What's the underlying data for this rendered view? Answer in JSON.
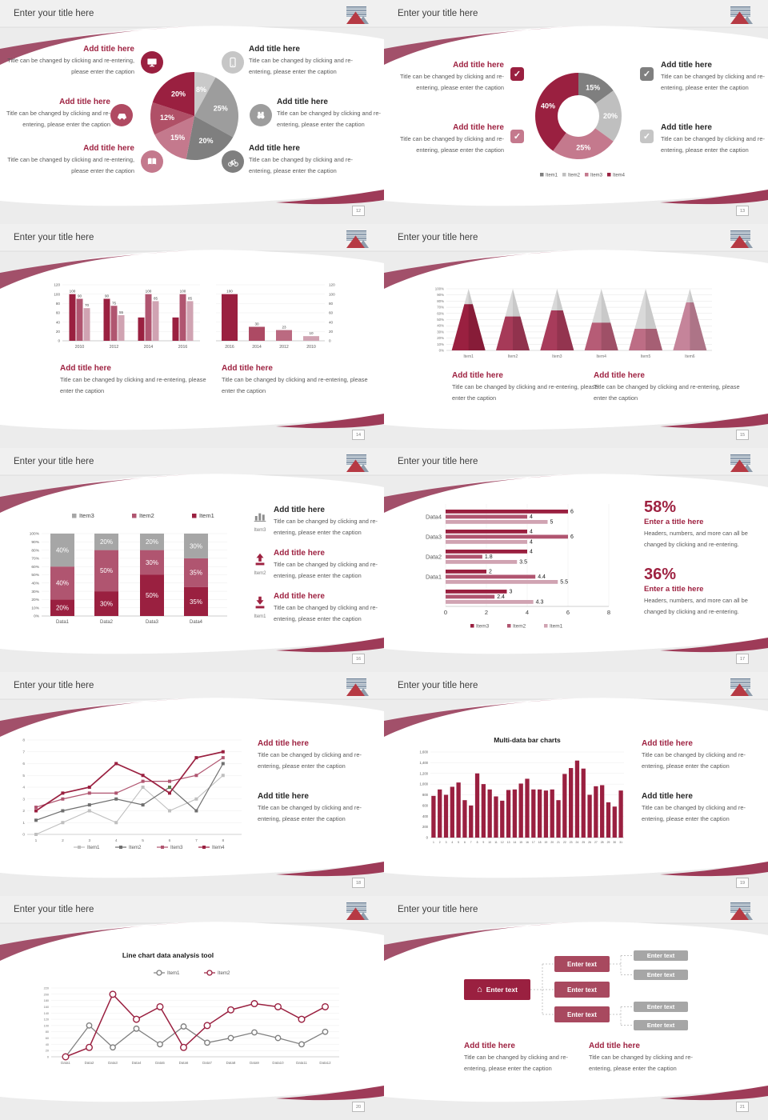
{
  "palette": {
    "accent_dark": "#9a2040",
    "accent_mid": "#b05570",
    "accent_rose": "#c4798d",
    "accent_light": "#d0a3b2",
    "gray_dark": "#7f7f7f",
    "gray_mid": "#9d9d9d",
    "gray_light": "#c6c6c6",
    "heading_red": "#9e2241",
    "heading_dark": "#262626",
    "caption_gray": "#595959",
    "swoosh_top": "#a2506a",
    "swoosh_bottom": "#9e3b58"
  },
  "common": {
    "slide_title": "Enter your title here",
    "add_title": "Add title here",
    "caption": "Title can be changed by clicking and re-entering, please enter the caption",
    "stat_title": "Enter a title here",
    "stat_caption": "Headers, numbers, and more can all be changed by clicking and re-entering.",
    "enter_text": "Enter text"
  },
  "slides": [
    {
      "page": "12",
      "icons": [
        {
          "name": "monitor",
          "color": "#9a2040"
        },
        {
          "name": "phone",
          "color": "#c6c6c6"
        },
        {
          "name": "car",
          "color": "#b04a62"
        },
        {
          "name": "binoculars",
          "color": "#9d9d9d"
        },
        {
          "name": "book",
          "color": "#c4798d"
        },
        {
          "name": "bicycle",
          "color": "#7f7f7f"
        }
      ]
    },
    {
      "page": "13",
      "checkboxes": [
        {
          "color": "#9a2040"
        },
        {
          "color": "#7f7f7f"
        },
        {
          "color": "#c4798d"
        },
        {
          "color": "#c5c5c5"
        }
      ]
    },
    {
      "page": "14"
    },
    {
      "page": "15"
    },
    {
      "page": "16",
      "items": [
        {
          "label": "Item3",
          "icon": "bar-chart"
        },
        {
          "label": "Item2",
          "icon": "upload"
        },
        {
          "label": "Item1",
          "icon": "download"
        }
      ]
    },
    {
      "page": "17",
      "stats": [
        {
          "value": "58%"
        },
        {
          "value": "36%"
        }
      ]
    },
    {
      "page": "18"
    },
    {
      "page": "19"
    },
    {
      "page": "20"
    },
    {
      "page": "21",
      "diagram": {
        "root": "Enter text",
        "mid": [
          "Enter text",
          "Enter text",
          "Enter text"
        ],
        "leaves": [
          "Enter text",
          "Enter text",
          "Enter text",
          "Enter text"
        ],
        "root_color": "#9a2040",
        "mid_color": "#a8495f",
        "leaf_color": "#a6a6a6"
      }
    }
  ],
  "chart_data": [
    {
      "id": "pie6",
      "type": "pie",
      "values": [
        8,
        25,
        20,
        15,
        12,
        20
      ],
      "labels": [
        "8%",
        "25%",
        "20%",
        "15%",
        "12%",
        "20%"
      ],
      "colors": [
        "#c9c9c9",
        "#9d9d9d",
        "#7f7f7f",
        "#c4798d",
        "#b05067",
        "#9a2040"
      ]
    },
    {
      "id": "donut4",
      "type": "pie",
      "values": [
        15,
        20,
        25,
        40
      ],
      "labels": [
        "15%",
        "20%",
        "25%",
        "40%"
      ],
      "colors": [
        "#7f7f7f",
        "#bfbfbf",
        "#c4798d",
        "#9a2040"
      ],
      "legend": [
        "Item1",
        "Item2",
        "Item3",
        "Item4"
      ],
      "legend_colors": [
        "#7f7f7f",
        "#bfbfbf",
        "#c4798d",
        "#9a2040"
      ]
    },
    {
      "id": "bars_grouped",
      "type": "bar",
      "categories": [
        "2010",
        "2012",
        "2014",
        "2016"
      ],
      "ylim": [
        0,
        120
      ],
      "yticks": [
        0,
        20,
        40,
        60,
        80,
        100,
        120
      ],
      "yaxis": "left",
      "series": [
        {
          "name": "series1",
          "color": "#9a2040",
          "values": [
            100,
            90,
            50,
            50
          ],
          "labels": [
            "100",
            "90",
            "",
            ""
          ]
        },
        {
          "name": "series2",
          "color": "#b05570",
          "values": [
            90,
            75,
            100,
            100
          ],
          "labels": [
            "90",
            "75",
            "100",
            "100"
          ]
        },
        {
          "name": "series3",
          "color": "#d0a3b2",
          "values": [
            70,
            55,
            85,
            85
          ],
          "labels": [
            "70",
            "55",
            "85",
            "85"
          ]
        }
      ]
    },
    {
      "id": "bars_single",
      "type": "bar",
      "categories": [
        "2016",
        "2014",
        "2012",
        "2010"
      ],
      "ylim": [
        0,
        120
      ],
      "yticks": [
        0,
        20,
        40,
        60,
        80,
        100,
        120
      ],
      "yaxis": "right",
      "series": [
        {
          "name": "series1",
          "color": [
            "#9a2040",
            "#ad4a64",
            "#bb6a81",
            "#d0a3b2"
          ],
          "values": [
            100,
            30,
            23,
            10
          ],
          "labels": [
            "100",
            "30",
            "23",
            "10"
          ]
        }
      ]
    },
    {
      "id": "cones",
      "type": "cone",
      "categories": [
        "Item1",
        "Item2",
        "Item3",
        "Item4",
        "Item5",
        "Item6"
      ],
      "values": [
        75,
        55,
        65,
        45,
        35,
        78
      ],
      "colors": [
        "#9a2040",
        "#a63a58",
        "#a83c5b",
        "#b65c76",
        "#bd6d85",
        "#c5849a"
      ],
      "rest_color": "#d9d9d9",
      "yticks": [
        "0%",
        "10%",
        "20%",
        "30%",
        "40%",
        "50%",
        "60%",
        "70%",
        "80%",
        "90%",
        "100%"
      ]
    },
    {
      "id": "stacked",
      "type": "stacked",
      "categories": [
        "Data1",
        "Data2",
        "Data3",
        "Data4"
      ],
      "yticks": [
        "0%",
        "10%",
        "20%",
        "30%",
        "40%",
        "50%",
        "60%",
        "70%",
        "80%",
        "90%",
        "100%"
      ],
      "series": [
        {
          "name": "Item1",
          "color": "#9a2040",
          "values": [
            20,
            30,
            50,
            35
          ]
        },
        {
          "name": "Item2",
          "color": "#b05570",
          "values": [
            40,
            50,
            30,
            35
          ]
        },
        {
          "name": "Item3",
          "color": "#a6a6a6",
          "values": [
            40,
            20,
            20,
            30
          ]
        }
      ],
      "legend": [
        {
          "name": "Item3",
          "color": "#a6a6a6"
        },
        {
          "name": "Item2",
          "color": "#b05570"
        },
        {
          "name": "Item1",
          "color": "#9a2040"
        }
      ]
    },
    {
      "id": "hbars",
      "type": "hbar",
      "groups": [
        "Data4",
        "Data3",
        "Data2",
        "Data1",
        ""
      ],
      "xlim": [
        0,
        8
      ],
      "xticks": [
        0,
        2,
        4,
        6,
        8
      ],
      "series": [
        {
          "name": "Item3",
          "color": "#9a2040",
          "values": [
            6,
            4,
            4,
            2,
            3
          ]
        },
        {
          "name": "Item2",
          "color": "#b05570",
          "values": [
            4,
            6,
            1.8,
            4.4,
            2.4
          ]
        },
        {
          "name": "Item1",
          "color": "#d0a3b2",
          "values": [
            5,
            4,
            3.5,
            5.5,
            4.3
          ]
        }
      ],
      "legend": [
        {
          "name": "Item3",
          "color": "#9a2040"
        },
        {
          "name": "Item2",
          "color": "#b05570"
        },
        {
          "name": "Item1",
          "color": "#d0a3b2"
        }
      ]
    },
    {
      "id": "line4",
      "type": "line",
      "x": [
        "1",
        "2",
        "3",
        "4",
        "5",
        "6",
        "7",
        "8"
      ],
      "ylim": [
        0,
        8
      ],
      "yticks": [
        0,
        1,
        2,
        3,
        4,
        5,
        6,
        7,
        8
      ],
      "marker": "square",
      "series": [
        {
          "name": "Item1",
          "color": "#bfbfbf",
          "values": [
            0,
            1,
            2,
            1,
            4,
            2,
            3,
            5
          ]
        },
        {
          "name": "Item2",
          "color": "#6f6f6f",
          "values": [
            1.2,
            2,
            2.5,
            3,
            2.5,
            4,
            2,
            6
          ]
        },
        {
          "name": "Item3",
          "color": "#b05570",
          "values": [
            2.3,
            3,
            3.5,
            3.5,
            4.5,
            4.5,
            5,
            6.5
          ]
        },
        {
          "name": "Item4",
          "color": "#9a2040",
          "values": [
            2,
            3.5,
            4,
            6,
            5,
            3.5,
            6.5,
            7
          ]
        }
      ],
      "special_marker": {
        "series": 1,
        "index": 5,
        "color": "#5f7d4f"
      }
    },
    {
      "id": "bars31",
      "type": "bar",
      "title": "Multi-data bar charts",
      "categories": [
        "1",
        "2",
        "3",
        "4",
        "5",
        "6",
        "7",
        "8",
        "9",
        "10",
        "11",
        "12",
        "13",
        "14",
        "15",
        "16",
        "17",
        "18",
        "19",
        "20",
        "21",
        "22",
        "23",
        "24",
        "25",
        "26",
        "27",
        "28",
        "29",
        "30",
        "31"
      ],
      "ylim": [
        0,
        1600
      ],
      "yticks": [
        "0",
        "200",
        "400",
        "600",
        "800",
        "1,000",
        "1,200",
        "1,400",
        "1,600"
      ],
      "yaxis": "left",
      "series": [
        {
          "name": "data",
          "color": "#9a2040",
          "values": [
            780,
            900,
            800,
            950,
            1030,
            700,
            600,
            1200,
            1000,
            900,
            770,
            690,
            890,
            900,
            1010,
            1100,
            900,
            900,
            880,
            900,
            700,
            1190,
            1300,
            1440,
            1290,
            800,
            960,
            980,
            660,
            580,
            880
          ]
        }
      ]
    },
    {
      "id": "line12",
      "type": "line",
      "title": "Line chart data analysis tool",
      "x": [
        "Data1",
        "Data2",
        "Data3",
        "Data4",
        "Data5",
        "Data6",
        "Data7",
        "Data8",
        "Data9",
        "Data10",
        "Data11",
        "Data12"
      ],
      "ylim": [
        0,
        220
      ],
      "yticks": [
        0,
        20,
        40,
        60,
        80,
        100,
        120,
        140,
        160,
        180,
        200,
        220
      ],
      "marker": "circle",
      "series": [
        {
          "name": "Item1",
          "color": "#808080",
          "values": [
            0,
            100,
            30,
            90,
            40,
            97,
            45,
            60,
            78,
            60,
            40,
            80
          ]
        },
        {
          "name": "Item2",
          "color": "#9a2040",
          "values": [
            0,
            30,
            200,
            120,
            160,
            30,
            100,
            150,
            170,
            160,
            120,
            160
          ]
        }
      ]
    }
  ]
}
